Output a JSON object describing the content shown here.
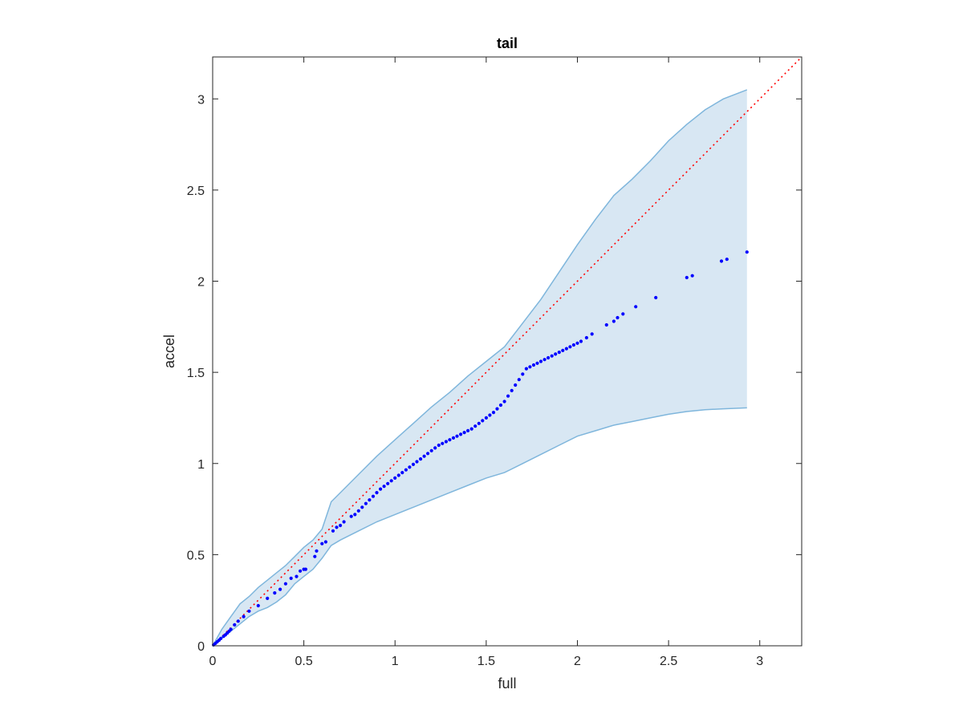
{
  "chart_data": {
    "type": "scatter",
    "title": "tail",
    "xlabel": "full",
    "ylabel": "accel",
    "xlim": [
      0,
      3.23
    ],
    "ylim": [
      0,
      3.23
    ],
    "xticks": [
      0,
      0.5,
      1,
      1.5,
      2,
      2.5,
      3
    ],
    "yticks": [
      0,
      0.5,
      1,
      1.5,
      2,
      2.5,
      3
    ],
    "xtick_labels": [
      "0",
      "0.5",
      "1",
      "1.5",
      "2",
      "2.5",
      "3"
    ],
    "ytick_labels": [
      "0",
      "0.5",
      "1",
      "1.5",
      "2",
      "2.5",
      "3"
    ],
    "grid": false,
    "reference_line": {
      "style": "dotted",
      "color": "#ff0000",
      "x": [
        0,
        3.23
      ],
      "y": [
        0,
        3.23
      ]
    },
    "band": {
      "color": "#d8e7f3",
      "edge_color": "#7fb6dc",
      "x": [
        0,
        0.05,
        0.1,
        0.15,
        0.2,
        0.25,
        0.3,
        0.35,
        0.4,
        0.45,
        0.5,
        0.55,
        0.6,
        0.65,
        0.7,
        0.8,
        0.9,
        1.0,
        1.1,
        1.2,
        1.3,
        1.4,
        1.5,
        1.6,
        1.7,
        1.8,
        1.9,
        2.0,
        2.1,
        2.2,
        2.3,
        2.4,
        2.5,
        2.6,
        2.7,
        2.8,
        2.93
      ],
      "upper": [
        0,
        0.09,
        0.16,
        0.23,
        0.27,
        0.32,
        0.36,
        0.4,
        0.44,
        0.49,
        0.54,
        0.58,
        0.64,
        0.79,
        0.84,
        0.94,
        1.04,
        1.13,
        1.22,
        1.31,
        1.39,
        1.48,
        1.56,
        1.64,
        1.77,
        1.9,
        2.05,
        2.2,
        2.34,
        2.47,
        2.56,
        2.66,
        2.77,
        2.86,
        2.94,
        3.0,
        3.05
      ],
      "lower": [
        0,
        0.04,
        0.08,
        0.12,
        0.16,
        0.19,
        0.21,
        0.24,
        0.28,
        0.34,
        0.38,
        0.42,
        0.48,
        0.55,
        0.58,
        0.63,
        0.68,
        0.72,
        0.76,
        0.8,
        0.84,
        0.88,
        0.92,
        0.95,
        1.0,
        1.05,
        1.1,
        1.15,
        1.18,
        1.21,
        1.23,
        1.25,
        1.27,
        1.285,
        1.295,
        1.3,
        1.305
      ]
    },
    "series": [
      {
        "color": "#0000ff",
        "x": [
          0.005,
          0.015,
          0.025,
          0.035,
          0.045,
          0.06,
          0.07,
          0.08,
          0.09,
          0.1,
          0.12,
          0.14,
          0.17,
          0.2,
          0.25,
          0.3,
          0.34,
          0.37,
          0.4,
          0.43,
          0.46,
          0.48,
          0.5,
          0.51,
          0.56,
          0.57,
          0.6,
          0.62,
          0.66,
          0.68,
          0.7,
          0.72,
          0.76,
          0.78,
          0.8,
          0.82,
          0.84,
          0.86,
          0.88,
          0.9,
          0.92,
          0.94,
          0.96,
          0.98,
          1.0,
          1.02,
          1.04,
          1.06,
          1.08,
          1.1,
          1.12,
          1.14,
          1.16,
          1.18,
          1.2,
          1.22,
          1.24,
          1.26,
          1.28,
          1.3,
          1.32,
          1.34,
          1.36,
          1.38,
          1.4,
          1.42,
          1.44,
          1.46,
          1.48,
          1.5,
          1.52,
          1.54,
          1.56,
          1.58,
          1.6,
          1.62,
          1.64,
          1.66,
          1.68,
          1.7,
          1.72,
          1.74,
          1.76,
          1.78,
          1.8,
          1.82,
          1.84,
          1.86,
          1.88,
          1.9,
          1.92,
          1.94,
          1.96,
          1.98,
          2.0,
          2.02,
          2.05,
          2.08,
          2.16,
          2.2,
          2.22,
          2.25,
          2.32,
          2.43,
          2.6,
          2.63,
          2.79,
          2.82,
          2.93
        ],
        "y": [
          0.005,
          0.013,
          0.022,
          0.031,
          0.04,
          0.052,
          0.06,
          0.07,
          0.08,
          0.09,
          0.115,
          0.135,
          0.16,
          0.19,
          0.22,
          0.26,
          0.29,
          0.31,
          0.34,
          0.37,
          0.38,
          0.41,
          0.42,
          0.42,
          0.49,
          0.52,
          0.56,
          0.57,
          0.63,
          0.65,
          0.66,
          0.68,
          0.71,
          0.72,
          0.74,
          0.76,
          0.78,
          0.8,
          0.82,
          0.84,
          0.86,
          0.875,
          0.89,
          0.905,
          0.92,
          0.935,
          0.95,
          0.965,
          0.98,
          0.995,
          1.01,
          1.025,
          1.04,
          1.055,
          1.07,
          1.085,
          1.1,
          1.11,
          1.12,
          1.13,
          1.14,
          1.15,
          1.16,
          1.17,
          1.18,
          1.19,
          1.205,
          1.22,
          1.235,
          1.25,
          1.265,
          1.28,
          1.3,
          1.32,
          1.34,
          1.37,
          1.4,
          1.43,
          1.46,
          1.49,
          1.52,
          1.53,
          1.54,
          1.55,
          1.56,
          1.57,
          1.58,
          1.59,
          1.6,
          1.61,
          1.62,
          1.63,
          1.64,
          1.65,
          1.66,
          1.67,
          1.69,
          1.71,
          1.76,
          1.78,
          1.8,
          1.82,
          1.86,
          1.91,
          2.02,
          2.03,
          2.11,
          2.12,
          2.16
        ]
      }
    ]
  }
}
